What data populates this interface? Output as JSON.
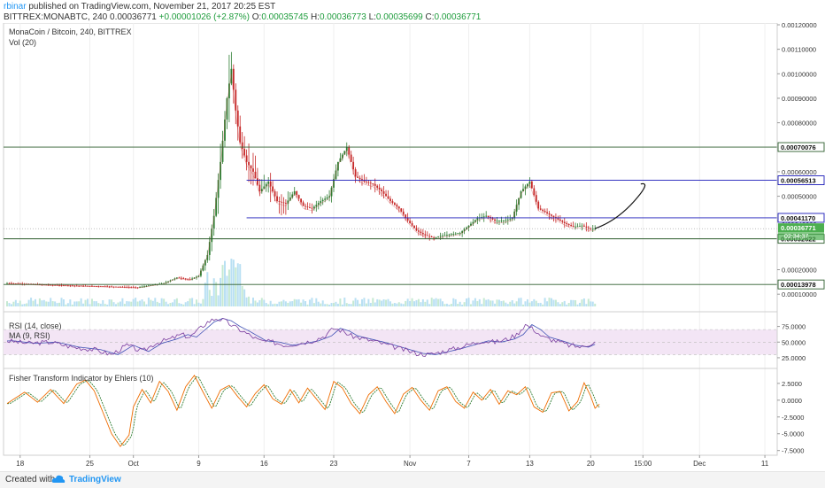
{
  "header": {
    "user": "rbinar",
    "published": " published on TradingView.com, November 21, 2017 20:25 EST",
    "symbol": "BITTREX:MONABTC, 240",
    "last": "0.00036771",
    "change": "+0.00001026 (+2.87%)",
    "o_label": "O:",
    "o_value": "0.00035745",
    "h_label": "H:",
    "h_value": "0.00036773",
    "l_label": "L:",
    "l_value": "0.00035699",
    "c_label": "C:",
    "c_value": "0.00036771"
  },
  "footer": {
    "created": "Created with",
    "brand": "TradingView",
    "logo_icon": "tradingview-cloud-icon"
  },
  "colors": {
    "up_candle": "#2e7d32",
    "down_candle": "#c62828",
    "volume": "#a8d8f0",
    "volume_green": "#b7e4c7",
    "rsi_line": "#7b3fa0",
    "rsi_ma": "#3f51b5",
    "rsi_band": "#f3e5f5",
    "fisher_a": "#ef6c00",
    "fisher_b": "#2e7d32",
    "hline_green": "#2e5d2e",
    "hline_blue": "#1a1ab8",
    "last_price_bg": "#4caf50"
  },
  "chart_data": [
    {
      "type": "candlestick",
      "title": "MonaCoin / Bitcoin, 240, BITTREX",
      "volume_label": "Vol (20)",
      "ylim": [
        5e-05,
        0.0012
      ],
      "y_ticks": [
        "0.00010000",
        "0.00020000",
        "0.00040000",
        "0.00050000",
        "0.00060000",
        "0.00080000",
        "0.00090000",
        "0.00100000",
        "0.00110000",
        "0.00120000"
      ],
      "x_ticks": [
        "18",
        "25",
        "Oct",
        "9",
        "16",
        "23",
        "Nov",
        "7",
        "13",
        "20",
        "15:00",
        "Dec",
        "11"
      ],
      "x_tick_index": [
        6,
        38,
        58,
        88,
        118,
        150,
        185,
        212,
        240,
        268,
        292,
        318,
        348
      ],
      "price_path": [
        [
          0,
          0.000145
        ],
        [
          20,
          0.000138
        ],
        [
          45,
          0.000132
        ],
        [
          60,
          0.000128
        ],
        [
          72,
          0.000145
        ],
        [
          78,
          0.000168
        ],
        [
          84,
          0.00016
        ],
        [
          88,
          0.000175
        ],
        [
          92,
          0.00026
        ],
        [
          95,
          0.00042
        ],
        [
          98,
          0.00064
        ],
        [
          101,
          0.0009
        ],
        [
          103,
          0.00102
        ],
        [
          105,
          0.00085
        ],
        [
          107,
          0.00072
        ],
        [
          110,
          0.00064
        ],
        [
          113,
          0.0006
        ],
        [
          116,
          0.00052
        ],
        [
          120,
          0.00056
        ],
        [
          124,
          0.00048
        ],
        [
          128,
          0.00047
        ],
        [
          132,
          0.00052
        ],
        [
          136,
          0.00046
        ],
        [
          140,
          0.00045
        ],
        [
          144,
          0.00048
        ],
        [
          148,
          0.0005
        ],
        [
          152,
          0.00064
        ],
        [
          156,
          0.0007
        ],
        [
          160,
          0.00058
        ],
        [
          164,
          0.00056
        ],
        [
          168,
          0.00055
        ],
        [
          172,
          0.00052
        ],
        [
          176,
          0.00048
        ],
        [
          180,
          0.00045
        ],
        [
          184,
          0.0004
        ],
        [
          188,
          0.00036
        ],
        [
          192,
          0.00034
        ],
        [
          196,
          0.00033
        ],
        [
          200,
          0.00034
        ],
        [
          204,
          0.000345
        ],
        [
          208,
          0.00035
        ],
        [
          212,
          0.00038
        ],
        [
          216,
          0.00041
        ],
        [
          220,
          0.00042
        ],
        [
          224,
          0.0004
        ],
        [
          228,
          0.0004
        ],
        [
          232,
          0.00041
        ],
        [
          236,
          0.00052
        ],
        [
          240,
          0.00056
        ],
        [
          244,
          0.00045
        ],
        [
          248,
          0.00043
        ],
        [
          252,
          0.00041
        ],
        [
          256,
          0.00039
        ],
        [
          260,
          0.000375
        ],
        [
          264,
          0.00038
        ],
        [
          268,
          0.000365
        ],
        [
          270,
          0.000368
        ]
      ],
      "horizontal_levels": [
        {
          "value": 0.00070076,
          "label": "0.00070076",
          "color": "hline_green"
        },
        {
          "value": 0.00056513,
          "label": "0.00056513",
          "color": "hline_blue"
        },
        {
          "value": 0.0004117,
          "label": "0.00041170",
          "color": "hline_blue"
        },
        {
          "value": 0.00032622,
          "label": "0.00032622",
          "color": "hline_green"
        },
        {
          "value": 0.00013978,
          "label": "0.00013978",
          "color": "hline_green"
        }
      ],
      "last_price": {
        "value": 0.00036771,
        "label": "0.00036771",
        "countdown": "02:34:37"
      },
      "projection": [
        [
          270,
          0.000368
        ],
        [
          280,
          0.0004
        ],
        [
          288,
          0.00048
        ],
        [
          291,
          0.00055
        ]
      ]
    },
    {
      "type": "line",
      "title": "RSI (14, close)",
      "ma_label": "MA (9, RSI)",
      "ylim": [
        15,
        90
      ],
      "y_ticks": [
        "75.0000",
        "50.0000",
        "25.0000"
      ],
      "band": [
        30,
        70
      ],
      "rsi_path": [
        [
          0,
          52
        ],
        [
          10,
          48
        ],
        [
          20,
          50
        ],
        [
          30,
          42
        ],
        [
          40,
          38
        ],
        [
          48,
          30
        ],
        [
          55,
          45
        ],
        [
          62,
          35
        ],
        [
          68,
          48
        ],
        [
          75,
          55
        ],
        [
          80,
          62
        ],
        [
          84,
          58
        ],
        [
          88,
          70
        ],
        [
          92,
          82
        ],
        [
          96,
          88
        ],
        [
          100,
          84
        ],
        [
          104,
          75
        ],
        [
          108,
          68
        ],
        [
          112,
          60
        ],
        [
          116,
          52
        ],
        [
          122,
          50
        ],
        [
          128,
          45
        ],
        [
          134,
          48
        ],
        [
          140,
          52
        ],
        [
          146,
          60
        ],
        [
          150,
          72
        ],
        [
          154,
          68
        ],
        [
          158,
          60
        ],
        [
          164,
          55
        ],
        [
          170,
          50
        ],
        [
          176,
          44
        ],
        [
          182,
          38
        ],
        [
          188,
          32
        ],
        [
          194,
          30
        ],
        [
          200,
          35
        ],
        [
          206,
          40
        ],
        [
          212,
          46
        ],
        [
          218,
          52
        ],
        [
          224,
          50
        ],
        [
          230,
          55
        ],
        [
          234,
          62
        ],
        [
          238,
          78
        ],
        [
          242,
          70
        ],
        [
          246,
          58
        ],
        [
          252,
          52
        ],
        [
          258,
          45
        ],
        [
          264,
          42
        ],
        [
          268,
          48
        ],
        [
          270,
          50
        ]
      ]
    },
    {
      "type": "line",
      "title": "Fisher Transform Indicator by Ehlers (10)",
      "ylim": [
        -8.2,
        4.2
      ],
      "y_ticks": [
        "2.5000",
        "0.0000",
        "-2.5000",
        "-5.0000",
        "-7.5000"
      ],
      "fisher_path": [
        [
          0,
          -0.5
        ],
        [
          8,
          1.2
        ],
        [
          14,
          -0.3
        ],
        [
          20,
          1.6
        ],
        [
          26,
          -0.5
        ],
        [
          32,
          2.4
        ],
        [
          36,
          3.0
        ],
        [
          40,
          1.4
        ],
        [
          44,
          -1.8
        ],
        [
          48,
          -5.0
        ],
        [
          52,
          -6.9
        ],
        [
          56,
          -5.2
        ],
        [
          58,
          -1.0
        ],
        [
          62,
          1.6
        ],
        [
          66,
          -0.4
        ],
        [
          70,
          2.8
        ],
        [
          74,
          1.3
        ],
        [
          78,
          -1.5
        ],
        [
          82,
          2.0
        ],
        [
          86,
          3.7
        ],
        [
          90,
          1.2
        ],
        [
          94,
          -1.2
        ],
        [
          98,
          1.5
        ],
        [
          102,
          2.2
        ],
        [
          106,
          0.5
        ],
        [
          110,
          -1.0
        ],
        [
          114,
          1.0
        ],
        [
          118,
          2.3
        ],
        [
          122,
          0.2
        ],
        [
          126,
          -0.6
        ],
        [
          130,
          1.6
        ],
        [
          134,
          -0.4
        ],
        [
          138,
          1.8
        ],
        [
          142,
          0.2
        ],
        [
          146,
          -1.4
        ],
        [
          150,
          2.8
        ],
        [
          154,
          1.8
        ],
        [
          158,
          -0.5
        ],
        [
          162,
          -2.0
        ],
        [
          166,
          0.8
        ],
        [
          170,
          2.0
        ],
        [
          174,
          -0.2
        ],
        [
          178,
          -2.0
        ],
        [
          182,
          0.9
        ],
        [
          186,
          1.9
        ],
        [
          190,
          0.0
        ],
        [
          194,
          -1.5
        ],
        [
          198,
          1.4
        ],
        [
          202,
          2.0
        ],
        [
          206,
          -0.2
        ],
        [
          210,
          -1.2
        ],
        [
          214,
          1.2
        ],
        [
          218,
          0.0
        ],
        [
          222,
          1.6
        ],
        [
          226,
          -0.6
        ],
        [
          230,
          1.4
        ],
        [
          234,
          0.8
        ],
        [
          238,
          2.0
        ],
        [
          242,
          -1.0
        ],
        [
          246,
          -1.8
        ],
        [
          250,
          1.1
        ],
        [
          254,
          1.3
        ],
        [
          258,
          -1.6
        ],
        [
          262,
          -0.2
        ],
        [
          265,
          2.6
        ],
        [
          268,
          0.6
        ],
        [
          270,
          -1.2
        ],
        [
          272,
          -0.6
        ]
      ]
    }
  ]
}
